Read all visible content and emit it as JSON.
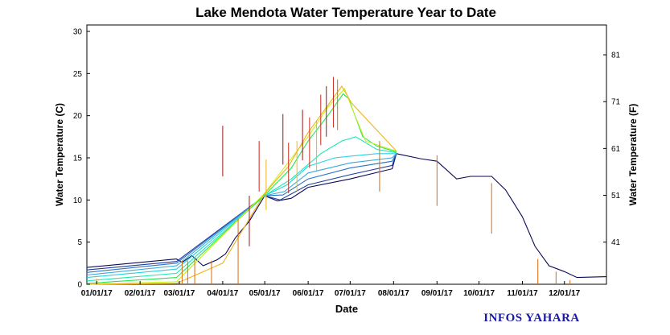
{
  "chart_data": {
    "type": "line",
    "title": "Lake Mendota Water Temperature Year to Date",
    "xlabel": "Date",
    "ylabel_left": "Water Temperature (C)",
    "ylabel_right": "Water Temperature (F)",
    "watermark": "INFOS YAHARA",
    "x_range": [
      "2016-12-25",
      "2017-12-31"
    ],
    "ylim_c": [
      0,
      30
    ],
    "yticks_c": [
      0,
      5,
      10,
      15,
      20,
      25,
      30
    ],
    "yticks_f": [
      41,
      51,
      61,
      71,
      81
    ],
    "x_ticks": [
      {
        "date": "2017-01-01",
        "label": "01/01/17"
      },
      {
        "date": "2017-02-01",
        "label": "02/01/17"
      },
      {
        "date": "2017-03-01",
        "label": "03/01/17"
      },
      {
        "date": "2017-04-01",
        "label": "04/01/17"
      },
      {
        "date": "2017-05-01",
        "label": "05/01/17"
      },
      {
        "date": "2017-06-01",
        "label": "06/01/17"
      },
      {
        "date": "2017-07-01",
        "label": "07/01/17"
      },
      {
        "date": "2017-08-01",
        "label": "08/01/17"
      },
      {
        "date": "2017-09-01",
        "label": "09/01/17"
      },
      {
        "date": "2017-10-01",
        "label": "10/01/17"
      },
      {
        "date": "2017-11-01",
        "label": "11/01/17"
      },
      {
        "date": "2017-12-01",
        "label": "12/01/17"
      }
    ],
    "grid": false,
    "series": [
      {
        "color": "#0a0a5a",
        "points": [
          [
            "2016-12-25",
            2.0
          ],
          [
            "2017-02-27",
            3.0
          ],
          [
            "2017-03-03",
            2.6
          ],
          [
            "2017-03-10",
            3.4
          ],
          [
            "2017-03-18",
            2.2
          ],
          [
            "2017-03-28",
            2.9
          ],
          [
            "2017-04-03",
            3.6
          ],
          [
            "2017-04-10",
            5.5
          ],
          [
            "2017-04-20",
            7.5
          ],
          [
            "2017-05-01",
            10.5
          ],
          [
            "2017-05-10",
            9.9
          ],
          [
            "2017-05-20",
            10.2
          ],
          [
            "2017-06-01",
            11.5
          ],
          [
            "2017-07-01",
            12.5
          ],
          [
            "2017-07-31",
            13.7
          ],
          [
            "2017-08-03",
            15.5
          ],
          [
            "2017-08-20",
            14.9
          ],
          [
            "2017-09-01",
            14.6
          ],
          [
            "2017-09-15",
            12.5
          ],
          [
            "2017-09-25",
            12.8
          ],
          [
            "2017-10-01",
            12.8
          ],
          [
            "2017-10-10",
            12.8
          ],
          [
            "2017-10-20",
            11.2
          ],
          [
            "2017-11-01",
            8.0
          ],
          [
            "2017-11-10",
            4.5
          ],
          [
            "2017-11-20",
            2.2
          ],
          [
            "2017-12-01",
            1.5
          ],
          [
            "2017-12-10",
            0.8
          ],
          [
            "2017-12-31",
            0.9
          ]
        ]
      },
      {
        "color": "#1e3c9e",
        "points": [
          [
            "2016-12-25",
            1.7
          ],
          [
            "2017-02-27",
            2.7
          ],
          [
            "2017-05-01",
            10.5
          ],
          [
            "2017-05-12",
            10.0
          ],
          [
            "2017-06-01",
            11.8
          ],
          [
            "2017-07-01",
            13.0
          ],
          [
            "2017-07-31",
            14.1
          ],
          [
            "2017-08-03",
            15.5
          ]
        ]
      },
      {
        "color": "#2d73c8",
        "points": [
          [
            "2016-12-25",
            1.4
          ],
          [
            "2017-02-27",
            2.5
          ],
          [
            "2017-05-01",
            10.5
          ],
          [
            "2017-05-14",
            10.6
          ],
          [
            "2017-06-01",
            12.5
          ],
          [
            "2017-07-01",
            13.8
          ],
          [
            "2017-07-31",
            14.6
          ],
          [
            "2017-08-03",
            15.5
          ]
        ]
      },
      {
        "color": "#3aa8d8",
        "points": [
          [
            "2016-12-25",
            1.1
          ],
          [
            "2017-02-27",
            2.2
          ],
          [
            "2017-05-01",
            10.5
          ],
          [
            "2017-05-15",
            11.0
          ],
          [
            "2017-06-01",
            13.2
          ],
          [
            "2017-07-01",
            14.4
          ],
          [
            "2017-07-31",
            15.0
          ],
          [
            "2017-08-03",
            15.5
          ]
        ]
      },
      {
        "color": "#28d2e0",
        "points": [
          [
            "2016-12-25",
            0.8
          ],
          [
            "2017-02-27",
            1.8
          ],
          [
            "2017-05-01",
            10.5
          ],
          [
            "2017-05-17",
            11.8
          ],
          [
            "2017-06-01",
            14.0
          ],
          [
            "2017-06-20",
            15.0
          ],
          [
            "2017-07-01",
            15.2
          ],
          [
            "2017-07-20",
            15.5
          ],
          [
            "2017-08-03",
            15.5
          ]
        ]
      },
      {
        "color": "#1ee6b4",
        "points": [
          [
            "2016-12-25",
            0.4
          ],
          [
            "2017-02-27",
            1.3
          ],
          [
            "2017-05-01",
            10.5
          ],
          [
            "2017-05-20",
            12.5
          ],
          [
            "2017-06-10",
            15.5
          ],
          [
            "2017-06-25",
            17.0
          ],
          [
            "2017-07-05",
            17.5
          ],
          [
            "2017-07-20",
            16.0
          ],
          [
            "2017-08-03",
            15.6
          ]
        ]
      },
      {
        "color": "#28e650",
        "points": [
          [
            "2016-12-25",
            0.1
          ],
          [
            "2017-02-27",
            0.8
          ],
          [
            "2017-05-01",
            10.6
          ],
          [
            "2017-05-20",
            13.8
          ],
          [
            "2017-06-01",
            17.0
          ],
          [
            "2017-06-15",
            20.0
          ],
          [
            "2017-06-26",
            22.6
          ],
          [
            "2017-06-30",
            22.0
          ],
          [
            "2017-07-10",
            17.5
          ],
          [
            "2017-07-20",
            16.4
          ],
          [
            "2017-08-03",
            15.7
          ]
        ]
      },
      {
        "color": "#c8f01e",
        "points": [
          [
            "2016-12-25",
            0.0
          ],
          [
            "2017-02-27",
            0.3
          ],
          [
            "2017-05-01",
            10.8
          ],
          [
            "2017-05-18",
            14.5
          ],
          [
            "2017-06-01",
            17.5
          ],
          [
            "2017-06-15",
            21.0
          ],
          [
            "2017-06-27",
            23.2
          ],
          [
            "2017-07-02",
            21.0
          ],
          [
            "2017-07-12",
            17.0
          ],
          [
            "2017-08-03",
            15.8
          ]
        ]
      },
      {
        "color": "#f0b41e",
        "points": [
          [
            "2016-12-25",
            0.0
          ],
          [
            "2017-02-27",
            0.1
          ],
          [
            "2017-04-01",
            2.5
          ],
          [
            "2017-05-01",
            10.8
          ],
          [
            "2017-05-18",
            14.0
          ],
          [
            "2017-06-01",
            18.0
          ],
          [
            "2017-06-25",
            23.5
          ],
          [
            "2017-07-02",
            21.5
          ],
          [
            "2017-08-03",
            15.8
          ]
        ]
      }
    ],
    "spikes": [
      {
        "date": "2017-01-01",
        "value": 0.7,
        "color": "#f0b41e"
      },
      {
        "date": "2017-03-03",
        "value": 2.8,
        "color": "#d96a12"
      },
      {
        "date": "2017-03-07",
        "value": 2.8,
        "color": "#d96a12"
      },
      {
        "date": "2017-03-12",
        "value": 3.0,
        "color": "#d96a12"
      },
      {
        "date": "2017-03-24",
        "value": 2.8,
        "color": "#d96a12"
      },
      {
        "date": "2017-04-01",
        "value": 18.8,
        "color": "#a01414"
      },
      {
        "date": "2017-04-12",
        "value": 7.8,
        "color": "#d96a12"
      },
      {
        "date": "2017-04-20",
        "value": 10.5,
        "color": "#a01414"
      },
      {
        "date": "2017-04-27",
        "value": 17.0,
        "color": "#c8281e"
      },
      {
        "date": "2017-05-02",
        "value": 14.8,
        "color": "#f0b41e"
      },
      {
        "date": "2017-05-14",
        "value": 20.2,
        "color": "#a01414"
      },
      {
        "date": "2017-05-18",
        "value": 16.8,
        "color": "#c8281e"
      },
      {
        "date": "2017-05-24",
        "value": 17.0,
        "color": "#f0b41e"
      },
      {
        "date": "2017-05-28",
        "value": 20.7,
        "color": "#a01414"
      },
      {
        "date": "2017-06-02",
        "value": 19.8,
        "color": "#c8281e"
      },
      {
        "date": "2017-06-07",
        "value": 19.5,
        "color": "#f0b41e"
      },
      {
        "date": "2017-06-10",
        "value": 22.5,
        "color": "#c8281e"
      },
      {
        "date": "2017-06-14",
        "value": 23.5,
        "color": "#a01414"
      },
      {
        "date": "2017-06-19",
        "value": 24.6,
        "color": "#c8281e"
      },
      {
        "date": "2017-06-22",
        "value": 24.3,
        "color": "#d96a12"
      },
      {
        "date": "2017-07-22",
        "value": 17.0,
        "color": "#d96a12"
      },
      {
        "date": "2017-09-01",
        "value": 15.3,
        "color": "#d96a12"
      },
      {
        "date": "2017-10-10",
        "value": 12.0,
        "color": "#d96a12"
      },
      {
        "date": "2017-11-12",
        "value": 3.0,
        "color": "#d96a12"
      },
      {
        "date": "2017-11-25",
        "value": 1.5,
        "color": "#d96a12"
      },
      {
        "date": "2017-12-05",
        "value": 0.5,
        "color": "#d96a12"
      }
    ]
  }
}
